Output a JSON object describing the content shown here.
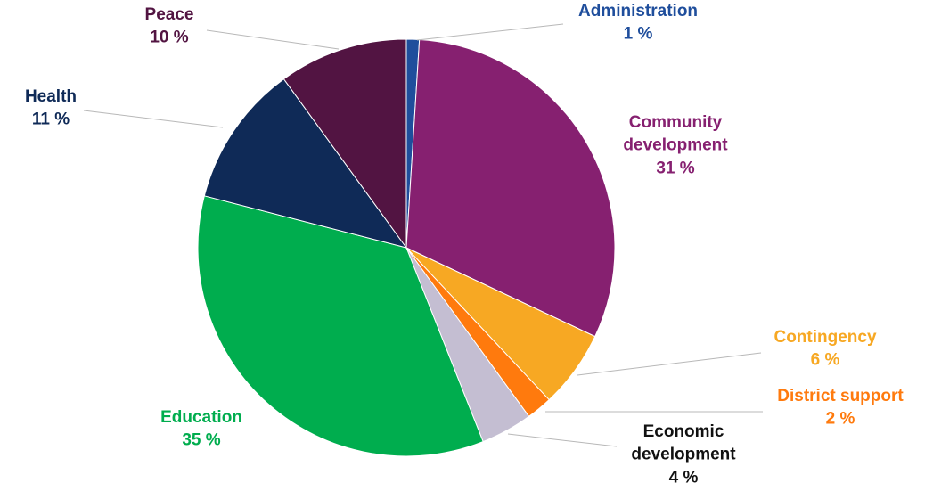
{
  "chart_data": {
    "type": "pie",
    "start_angle_deg": 0,
    "direction": "clockwise",
    "slices": [
      {
        "name": "Administration",
        "label_lines": [
          "Administration"
        ],
        "value": 1,
        "value_label": "1 %",
        "color": "#1f4e9c",
        "label_color": "#1f4e9c"
      },
      {
        "name": "Community development",
        "label_lines": [
          "Community",
          "development"
        ],
        "value": 31,
        "value_label": "31 %",
        "color": "#862070",
        "label_color": "#862070"
      },
      {
        "name": "Contingency",
        "label_lines": [
          "Contingency"
        ],
        "value": 6,
        "value_label": "6 %",
        "color": "#f7a823",
        "label_color": "#f7a823"
      },
      {
        "name": "District support",
        "label_lines": [
          "District support"
        ],
        "value": 2,
        "value_label": "2 %",
        "color": "#ff7a0d",
        "label_color": "#ff7a0d"
      },
      {
        "name": "Economic development",
        "label_lines": [
          "Economic",
          "development"
        ],
        "value": 4,
        "value_label": "4 %",
        "color": "#c4bed2",
        "label_color": "#111111"
      },
      {
        "name": "Education",
        "label_lines": [
          "Education"
        ],
        "value": 35,
        "value_label": "35 %",
        "color": "#00ad4e",
        "label_color": "#00ad4e"
      },
      {
        "name": "Health",
        "label_lines": [
          "Health"
        ],
        "value": 11,
        "value_label": "11 %",
        "color": "#0f2a57",
        "label_color": "#0f2a57"
      },
      {
        "name": "Peace",
        "label_lines": [
          "Peace"
        ],
        "value": 10,
        "value_label": "10 %",
        "color": "#521442",
        "label_color": "#521442"
      }
    ]
  }
}
